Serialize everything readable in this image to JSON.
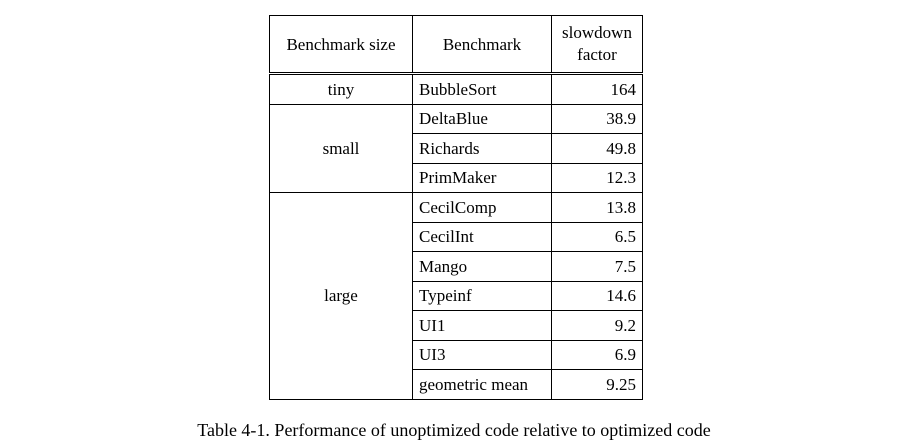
{
  "table": {
    "headers": {
      "size": "Benchmark size",
      "name": "Benchmark",
      "factor_line1": "slowdown",
      "factor_line2": "factor"
    },
    "groups": [
      {
        "size": "tiny",
        "rows": [
          {
            "name": "BubbleSort",
            "factor": "164"
          }
        ]
      },
      {
        "size": "small",
        "rows": [
          {
            "name": "DeltaBlue",
            "factor": "38.9"
          },
          {
            "name": "Richards",
            "factor": "49.8"
          },
          {
            "name": "PrimMaker",
            "factor": "12.3"
          }
        ]
      },
      {
        "size": "large",
        "rows": [
          {
            "name": "CecilComp",
            "factor": "13.8"
          },
          {
            "name": "CecilInt",
            "factor": "6.5"
          },
          {
            "name": "Mango",
            "factor": "7.5"
          },
          {
            "name": "Typeinf",
            "factor": "14.6"
          },
          {
            "name": "UI1",
            "factor": "9.2"
          },
          {
            "name": "UI3",
            "factor": "6.9"
          },
          {
            "name": "geometric mean",
            "factor": "9.25"
          }
        ]
      }
    ]
  },
  "caption": "Table 4-1.  Performance of unoptimized code relative to optimized code"
}
